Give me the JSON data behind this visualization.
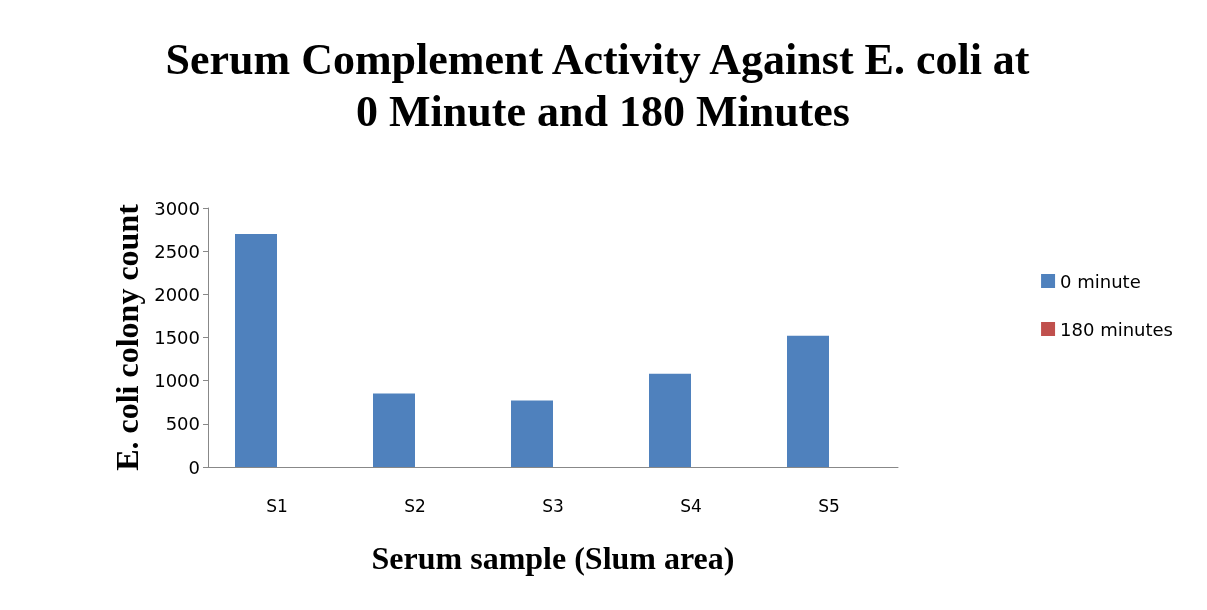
{
  "chart_data": {
    "type": "bar",
    "title": "Serum Complement Activity Against E. coli at 0 Minute and 180 Minutes",
    "xlabel": "Serum sample (Slum area)",
    "ylabel": "E. coli colony count",
    "categories": [
      "S1",
      "S2",
      "S3",
      "S4",
      "S5"
    ],
    "series": [
      {
        "name": "0 minute",
        "color": "#4f81bd",
        "values": [
          2700,
          850,
          770,
          1080,
          1520
        ]
      },
      {
        "name": "180 minutes",
        "color": "#c0504d",
        "values": [
          0,
          0,
          0,
          0,
          0
        ]
      }
    ],
    "ylim": [
      0,
      3000
    ],
    "yticks": [
      0,
      500,
      1000,
      1500,
      2000,
      2500,
      3000
    ],
    "grid": false,
    "legend": "right"
  }
}
